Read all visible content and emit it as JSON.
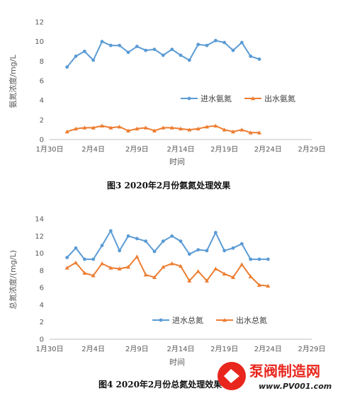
{
  "chart_data": [
    {
      "type": "line",
      "title": "",
      "xlabel": "时间",
      "ylabel": "氨氮浓度/mg/L",
      "ylim": [
        0,
        12
      ],
      "yticks": [
        0,
        2,
        4,
        6,
        8,
        10,
        12
      ],
      "xticks": [
        "1月30日",
        "2月4日",
        "2月9日",
        "2月14日",
        "2月19日",
        "2月24日",
        "2月29日"
      ],
      "grid": false,
      "legend_position": "right-middle",
      "x": [
        "2020-02-01",
        "2020-02-02",
        "2020-02-03",
        "2020-02-04",
        "2020-02-05",
        "2020-02-06",
        "2020-02-07",
        "2020-02-08",
        "2020-02-09",
        "2020-02-10",
        "2020-02-11",
        "2020-02-12",
        "2020-02-13",
        "2020-02-14",
        "2020-02-15",
        "2020-02-16",
        "2020-02-17",
        "2020-02-18",
        "2020-02-19",
        "2020-02-20",
        "2020-02-21",
        "2020-02-22",
        "2020-02-23"
      ],
      "series": [
        {
          "name": "进水氨氮",
          "color": "#5b9bd5",
          "marker": "circle",
          "values": [
            7.4,
            8.5,
            9.0,
            8.1,
            10.0,
            9.6,
            9.6,
            8.9,
            9.5,
            9.1,
            9.2,
            8.6,
            9.2,
            8.6,
            8.1,
            9.7,
            9.6,
            10.1,
            9.9,
            9.1,
            9.9,
            8.5,
            8.2
          ]
        },
        {
          "name": "出水氨氮",
          "color": "#ed7d31",
          "marker": "triangle",
          "values": [
            0.8,
            1.1,
            1.2,
            1.2,
            1.4,
            1.2,
            1.3,
            0.9,
            1.1,
            1.2,
            0.9,
            1.2,
            1.2,
            1.1,
            1.0,
            1.1,
            1.3,
            1.4,
            1.0,
            0.8,
            1.0,
            0.7,
            0.7
          ]
        }
      ]
    },
    {
      "type": "line",
      "title": "",
      "xlabel": "时间",
      "ylabel": "总氮浓度/(mg/L)",
      "ylim": [
        0,
        14
      ],
      "yticks": [
        0,
        2,
        4,
        6,
        8,
        10,
        12,
        14
      ],
      "xticks": [
        "1月30日",
        "2月4日",
        "2月9日",
        "2月14日",
        "2月19日",
        "2月24日",
        "2月29日"
      ],
      "grid": false,
      "legend_position": "bottom-right",
      "x": [
        "2020-02-01",
        "2020-02-02",
        "2020-02-03",
        "2020-02-04",
        "2020-02-05",
        "2020-02-06",
        "2020-02-07",
        "2020-02-08",
        "2020-02-09",
        "2020-02-10",
        "2020-02-11",
        "2020-02-12",
        "2020-02-13",
        "2020-02-14",
        "2020-02-15",
        "2020-02-16",
        "2020-02-17",
        "2020-02-18",
        "2020-02-19",
        "2020-02-20",
        "2020-02-21",
        "2020-02-22",
        "2020-02-23",
        "2020-02-24"
      ],
      "series": [
        {
          "name": "进水总氮",
          "color": "#5b9bd5",
          "marker": "circle",
          "values": [
            9.5,
            10.6,
            9.3,
            9.3,
            10.9,
            12.6,
            10.3,
            12.0,
            11.7,
            11.4,
            10.2,
            11.4,
            12.0,
            11.4,
            9.9,
            10.4,
            10.3,
            12.4,
            10.3,
            10.6,
            11.1,
            9.3,
            9.3,
            9.3
          ]
        },
        {
          "name": "出水总氮",
          "color": "#ed7d31",
          "marker": "triangle",
          "values": [
            8.3,
            8.9,
            7.7,
            7.4,
            8.8,
            8.3,
            8.2,
            8.4,
            9.6,
            7.5,
            7.2,
            8.4,
            8.8,
            8.5,
            6.8,
            7.9,
            6.8,
            8.2,
            7.6,
            7.2,
            8.7,
            7.3,
            6.3,
            6.2
          ]
        }
      ]
    }
  ],
  "captions": {
    "fig3": "图3  2020年2月份氨氮处理效果",
    "fig4": "图4  2020年2月份总氮处理效果"
  },
  "watermark": {
    "name": "泵阀制造网",
    "url": "www.PV001.com"
  }
}
